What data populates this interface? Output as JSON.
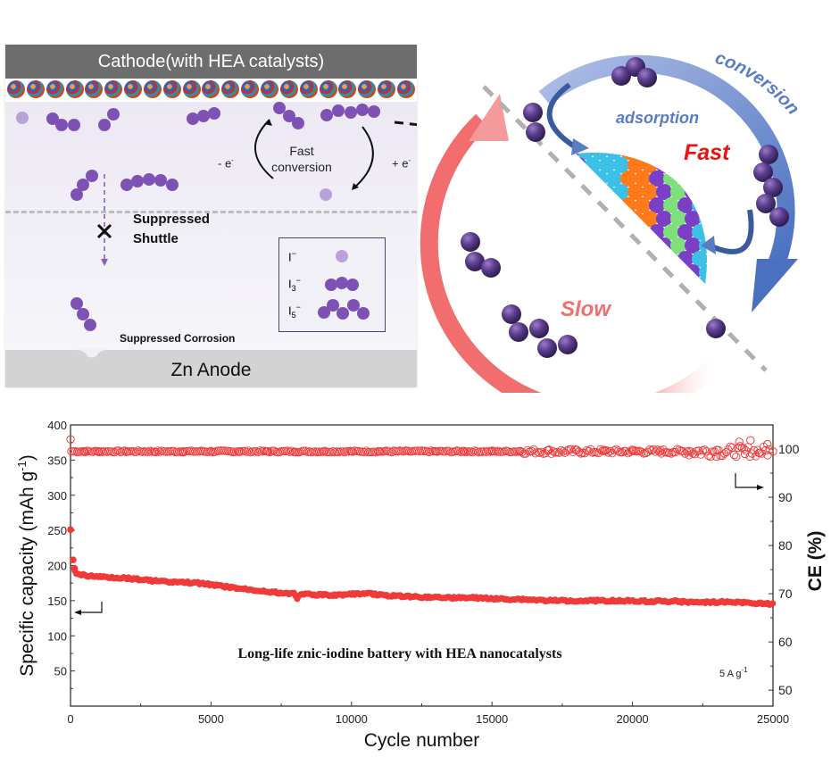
{
  "schematic": {
    "cathode_label": "Cathode(with HEA catalysts)",
    "anode_label": "Zn  Anode",
    "fast_conversion_label_line1": "Fast",
    "fast_conversion_label_line2": "conversion",
    "minus_e_label": "- e",
    "plus_e_label": "+ e",
    "electron_superscript": "-",
    "suppressed_shuttle_line1": "Suppressed",
    "suppressed_shuttle_line2": "Shuttle",
    "suppressed_corrosion_label": "Suppressed Corrosion",
    "legend": [
      {
        "label": "I",
        "sub": "",
        "sup": "−",
        "species": "iodide",
        "atoms": 1
      },
      {
        "label": "I",
        "sub": "3",
        "sup": "−",
        "species": "triiodide",
        "atoms": 3
      },
      {
        "label": "I",
        "sub": "5",
        "sup": "−",
        "species": "pentaiodide",
        "atoms": 5
      }
    ],
    "colors": {
      "iodine_dark": "#7d52b4",
      "iodine_light": "#b9a2d8",
      "cathode_bar": "#6d6d6d",
      "anode_bar": "#d3d3d3"
    }
  },
  "cycle_diagram": {
    "adsorption_label": "adsorption",
    "conversion_label": "conversion",
    "fast_label": "Fast",
    "slow_label": "Slow",
    "colors": {
      "fast_arc": "#8fa8d8",
      "fast_arrow": "#4a70c0",
      "slow_arc": "#f26d6d",
      "fast_text": "#ee1111",
      "slow_text": "#f07070",
      "adsorption_text": "#5a7cc4",
      "conversion_text": "#5a7cc4"
    }
  },
  "chart_data": {
    "type": "scatter",
    "title": "",
    "annotation": "Long-life znic-iodine battery with HEA nanocatalysts",
    "current_density_label": "5 A g",
    "current_density_sup": "-1",
    "xlabel": "Cycle number",
    "ylabel_left": "Specific capacity (mAh g",
    "ylabel_left_sup": "-1",
    "ylabel_left_end": ")",
    "ylabel_right": "CE (%)",
    "xlim": [
      0,
      25000
    ],
    "ylim_left": [
      0,
      400
    ],
    "ylim_right": [
      46.7,
      105
    ],
    "x_ticks": [
      0,
      5000,
      10000,
      15000,
      20000,
      25000
    ],
    "y_left_ticks": [
      50,
      100,
      150,
      200,
      250,
      300,
      350,
      400
    ],
    "y_right_ticks": [
      50,
      60,
      70,
      80,
      90,
      100
    ],
    "grid": false,
    "series": [
      {
        "name": "Specific capacity",
        "axis": "left",
        "marker": "filled-circle",
        "color": "#f03a3a",
        "x": [
          1,
          30,
          80,
          200,
          500,
          1000,
          1500,
          2000,
          2500,
          3000,
          3500,
          4000,
          4500,
          5000,
          5500,
          6000,
          6500,
          7000,
          7500,
          8000,
          8050,
          8100,
          8500,
          9000,
          9500,
          10000,
          10500,
          11000,
          11500,
          12000,
          12500,
          13000,
          13500,
          14000,
          14500,
          15000,
          15500,
          16000,
          16500,
          17000,
          17500,
          18000,
          18500,
          19000,
          19500,
          20000,
          20500,
          21000,
          21500,
          22000,
          22500,
          23000,
          23500,
          24000,
          24500,
          25000
        ],
        "y": [
          251,
          208,
          196,
          189,
          186,
          184,
          183,
          182,
          180,
          178,
          177,
          176,
          175,
          173,
          170,
          167,
          165,
          163,
          161,
          160,
          150,
          158,
          159,
          158,
          158,
          159,
          161,
          158,
          157,
          156,
          155,
          155,
          154,
          154,
          154,
          153,
          152,
          152,
          151,
          150,
          150,
          150,
          150,
          150,
          150,
          150,
          149,
          149,
          149,
          148,
          148,
          148,
          148,
          147,
          146,
          145
        ]
      },
      {
        "name": "CE",
        "axis": "right",
        "marker": "open-circle",
        "color": "#f03a3a",
        "x": [
          1,
          30,
          500,
          1000,
          2000,
          3000,
          4000,
          5000,
          6000,
          7000,
          8000,
          9000,
          10000,
          11000,
          12000,
          13000,
          14000,
          15000,
          16000,
          17000,
          18000,
          19000,
          20000,
          21000,
          22000,
          23000,
          23800,
          24000,
          24200,
          24500,
          24800,
          25000
        ],
        "y": [
          102,
          99.5,
          99.5,
          99.5,
          99.5,
          99.4,
          99.5,
          99.5,
          99.5,
          99.5,
          99.4,
          99.5,
          99.5,
          99.5,
          99.6,
          99.5,
          99.6,
          99.5,
          99.6,
          99.7,
          99.8,
          99.6,
          99.6,
          99.7,
          99.6,
          99.8,
          101.5,
          99,
          101.8,
          99.2,
          101,
          99.5
        ]
      }
    ]
  }
}
